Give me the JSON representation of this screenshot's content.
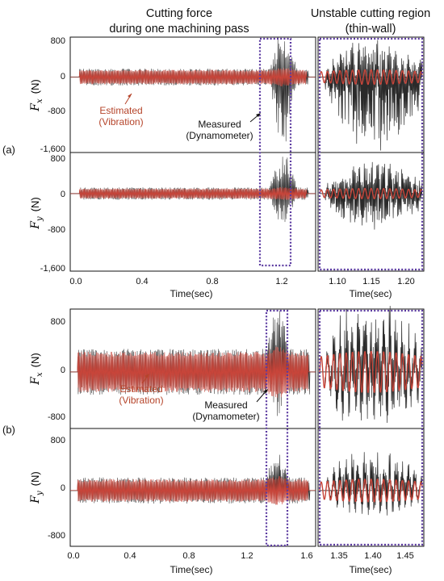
{
  "headers": {
    "left_line1": "Cutting force",
    "left_line2": "during one machining pass",
    "right_line1": "Unstable cutting region",
    "right_line2": "(thin-wall)"
  },
  "colors": {
    "measured": "#2a2a2a",
    "estimated": "#c8453a",
    "estimated_band": "#f3c4be",
    "highlight_box": "#5b3aa0"
  },
  "panels": [
    {
      "letter": "(a)",
      "annotations": {
        "estimated_line1": "Estimated",
        "estimated_line2": "(Vibration)",
        "measured_line1": "Measured",
        "measured_line2": "(Dynamometer)"
      },
      "x_label_full": "Time(sec)",
      "x_label_zoom": "Time(sec)",
      "x_ticks_full": [
        "0.0",
        "0.4",
        "0.8",
        "1.2"
      ],
      "x_ticks_zoom": [
        "1.10",
        "1.15",
        "1.20"
      ],
      "fx_label": {
        "main": "F",
        "sub": "x",
        "unit": "(N)"
      },
      "fy_label": {
        "main": "F",
        "sub": "y",
        "unit": "(N)"
      },
      "fx_ticks": [
        "800",
        "0",
        "-800",
        "-1,600"
      ],
      "fy_ticks": [
        "800",
        "0",
        "-800",
        "-1,600"
      ]
    },
    {
      "letter": "(b)",
      "annotations": {
        "estimated_line1": "Estimated",
        "estimated_line2": "(Vibration)",
        "measured_line1": "Measured",
        "measured_line2": "(Dynamometer)"
      },
      "x_label_full": "Time(sec)",
      "x_label_zoom": "Time(sec)",
      "x_ticks_full": [
        "0.0",
        "0.4",
        "0.8",
        "1.2",
        "1.6"
      ],
      "x_ticks_zoom": [
        "1.35",
        "1.40",
        "1.45"
      ],
      "fx_label": {
        "main": "F",
        "sub": "x",
        "unit": "(N)"
      },
      "fy_label": {
        "main": "F",
        "sub": "y",
        "unit": "(N)"
      },
      "fx_ticks": [
        "800",
        "0",
        "-800"
      ],
      "fy_ticks": [
        "800",
        "0",
        "-800"
      ]
    }
  ],
  "chart_data": [
    {
      "type": "line",
      "panel": "(a)",
      "signal": "Fx",
      "x_range": [
        0.0,
        1.32
      ],
      "zoom_x_range": [
        1.07,
        1.22
      ],
      "ylim": [
        -1700,
        900
      ],
      "series": [
        {
          "name": "Estimated (Vibration)",
          "typical_amplitude": 160,
          "active_from": 0.05,
          "active_to": 1.27
        },
        {
          "name": "Measured (Dynamometer)",
          "typical_amplitude": 170,
          "unstable_region": [
            1.07,
            1.22
          ],
          "unstable_peak": 700,
          "unstable_trough": -1550
        }
      ]
    },
    {
      "type": "line",
      "panel": "(a)",
      "signal": "Fy",
      "x_range": [
        0.0,
        1.32
      ],
      "zoom_x_range": [
        1.07,
        1.22
      ],
      "ylim": [
        -1700,
        900
      ],
      "series": [
        {
          "name": "Estimated (Vibration)",
          "typical_amplitude": 110,
          "active_from": 0.05,
          "active_to": 1.27
        },
        {
          "name": "Measured (Dynamometer)",
          "typical_amplitude": 120,
          "unstable_region": [
            1.07,
            1.22
          ],
          "unstable_peak": 650,
          "unstable_trough": -700
        }
      ]
    },
    {
      "type": "line",
      "panel": "(b)",
      "signal": "Fx",
      "x_range": [
        0.0,
        1.65
      ],
      "zoom_x_range": [
        1.32,
        1.47
      ],
      "ylim": [
        -900,
        1000
      ],
      "series": [
        {
          "name": "Estimated (Vibration)",
          "typical_amplitude": 320,
          "active_from": 0.05,
          "active_to": 1.6
        },
        {
          "name": "Measured (Dynamometer)",
          "typical_amplitude": 330,
          "unstable_region": [
            1.32,
            1.47
          ],
          "unstable_peak": 850,
          "unstable_trough": -700
        }
      ]
    },
    {
      "type": "line",
      "panel": "(b)",
      "signal": "Fy",
      "x_range": [
        0.0,
        1.65
      ],
      "zoom_x_range": [
        1.32,
        1.47
      ],
      "ylim": [
        -900,
        1000
      ],
      "series": [
        {
          "name": "Estimated (Vibration)",
          "typical_amplitude": 180,
          "active_from": 0.05,
          "active_to": 1.6
        },
        {
          "name": "Measured (Dynamometer)",
          "typical_amplitude": 190,
          "unstable_region": [
            1.32,
            1.47
          ],
          "unstable_peak": 500,
          "unstable_trough": -250
        }
      ]
    }
  ]
}
